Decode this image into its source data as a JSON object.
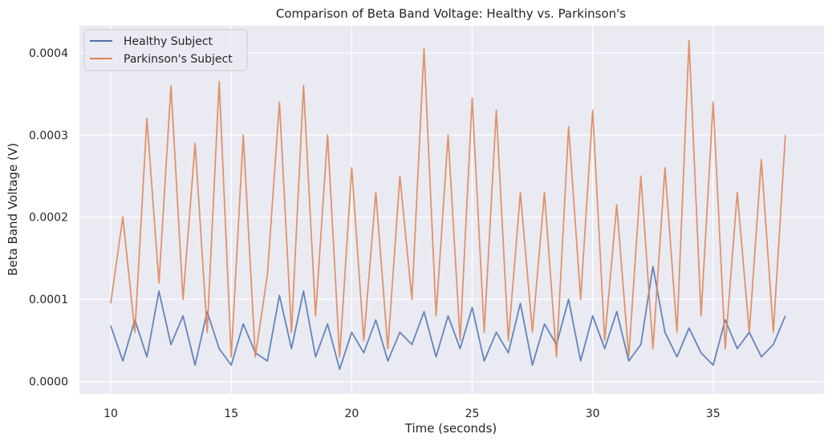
{
  "chart_data": {
    "type": "line",
    "title": "Comparison of Beta Band Voltage: Healthy vs. Parkinson's",
    "xlabel": "Time (seconds)",
    "ylabel": "Beta Band Voltage (V)",
    "xlim": [
      8.7,
      39.6
    ],
    "ylim": [
      -1.5e-05,
      0.000433
    ],
    "x_ticks": [
      10,
      15,
      20,
      25,
      30,
      35
    ],
    "x_tick_labels": [
      "10",
      "15",
      "20",
      "25",
      "30",
      "35"
    ],
    "y_ticks": [
      0,
      0.0001,
      0.0002,
      0.0003,
      0.0004
    ],
    "y_tick_labels": [
      "0.0000",
      "0.0001",
      "0.0002",
      "0.0003",
      "0.0004"
    ],
    "grid": true,
    "legend_position": "top-left",
    "background": "#eaeaf2",
    "series": [
      {
        "name": "Healthy Subject",
        "color": "#4c72b0",
        "x": [
          10,
          10.5,
          11,
          11.5,
          12,
          12.5,
          13,
          13.5,
          14,
          14.5,
          15,
          15.5,
          16,
          16.5,
          17,
          17.5,
          18,
          18.5,
          19,
          19.5,
          20,
          20.5,
          21,
          21.5,
          22,
          22.5,
          23,
          23.5,
          24,
          24.5,
          25,
          25.5,
          26,
          26.5,
          27,
          27.5,
          28,
          28.5,
          29,
          29.5,
          30,
          30.5,
          31,
          31.5,
          32,
          32.5,
          33,
          33.5,
          34,
          34.5,
          35,
          35.5,
          36,
          36.5,
          37,
          37.5,
          38
        ],
        "y": [
          6.8e-05,
          2.5e-05,
          7.5e-05,
          3e-05,
          0.00011,
          4.5e-05,
          8e-05,
          2e-05,
          8.5e-05,
          4e-05,
          2e-05,
          7e-05,
          3.5e-05,
          2.5e-05,
          0.000105,
          4e-05,
          0.00011,
          3e-05,
          7e-05,
          1.5e-05,
          6e-05,
          3.5e-05,
          7.5e-05,
          2.5e-05,
          6e-05,
          4.5e-05,
          8.5e-05,
          3e-05,
          8e-05,
          4e-05,
          9e-05,
          2.5e-05,
          6e-05,
          3.5e-05,
          9.5e-05,
          2e-05,
          7e-05,
          4.5e-05,
          0.0001,
          2.5e-05,
          8e-05,
          4e-05,
          8.5e-05,
          2.5e-05,
          4.5e-05,
          0.00014,
          6e-05,
          3e-05,
          6.5e-05,
          3.5e-05,
          2e-05,
          7.5e-05,
          4e-05,
          6e-05,
          3e-05,
          4.5e-05,
          8e-05
        ]
      },
      {
        "name": "Parkinson's Subject",
        "color": "#dd8452",
        "x": [
          10,
          10.5,
          11,
          11.5,
          12,
          12.5,
          13,
          13.5,
          14,
          14.5,
          15,
          15.5,
          16,
          16.5,
          17,
          17.5,
          18,
          18.5,
          19,
          19.5,
          20,
          20.5,
          21,
          21.5,
          22,
          22.5,
          23,
          23.5,
          24,
          24.5,
          25,
          25.5,
          26,
          26.5,
          27,
          27.5,
          28,
          28.5,
          29,
          29.5,
          30,
          30.5,
          31,
          31.5,
          32,
          32.5,
          33,
          33.5,
          34,
          34.5,
          35,
          35.5,
          36,
          36.5,
          37,
          37.5,
          38
        ],
        "y": [
          9.5e-05,
          0.0002,
          6e-05,
          0.00032,
          0.00012,
          0.00036,
          0.0001,
          0.00029,
          6e-05,
          0.000365,
          3e-05,
          0.0003,
          3e-05,
          0.00013,
          0.00034,
          6e-05,
          0.00036,
          8e-05,
          0.0003,
          3e-05,
          0.00026,
          5e-05,
          0.00023,
          4e-05,
          0.00025,
          0.0001,
          0.000405,
          8e-05,
          0.0003,
          5e-05,
          0.000345,
          6e-05,
          0.00033,
          5e-05,
          0.00023,
          6e-05,
          0.00023,
          3e-05,
          0.00031,
          0.0001,
          0.00033,
          5e-05,
          0.000215,
          3e-05,
          0.00025,
          4e-05,
          0.00026,
          6e-05,
          0.000415,
          8e-05,
          0.00034,
          4e-05,
          0.00023,
          6e-05,
          0.00027,
          6e-05,
          0.0003
        ]
      }
    ]
  }
}
